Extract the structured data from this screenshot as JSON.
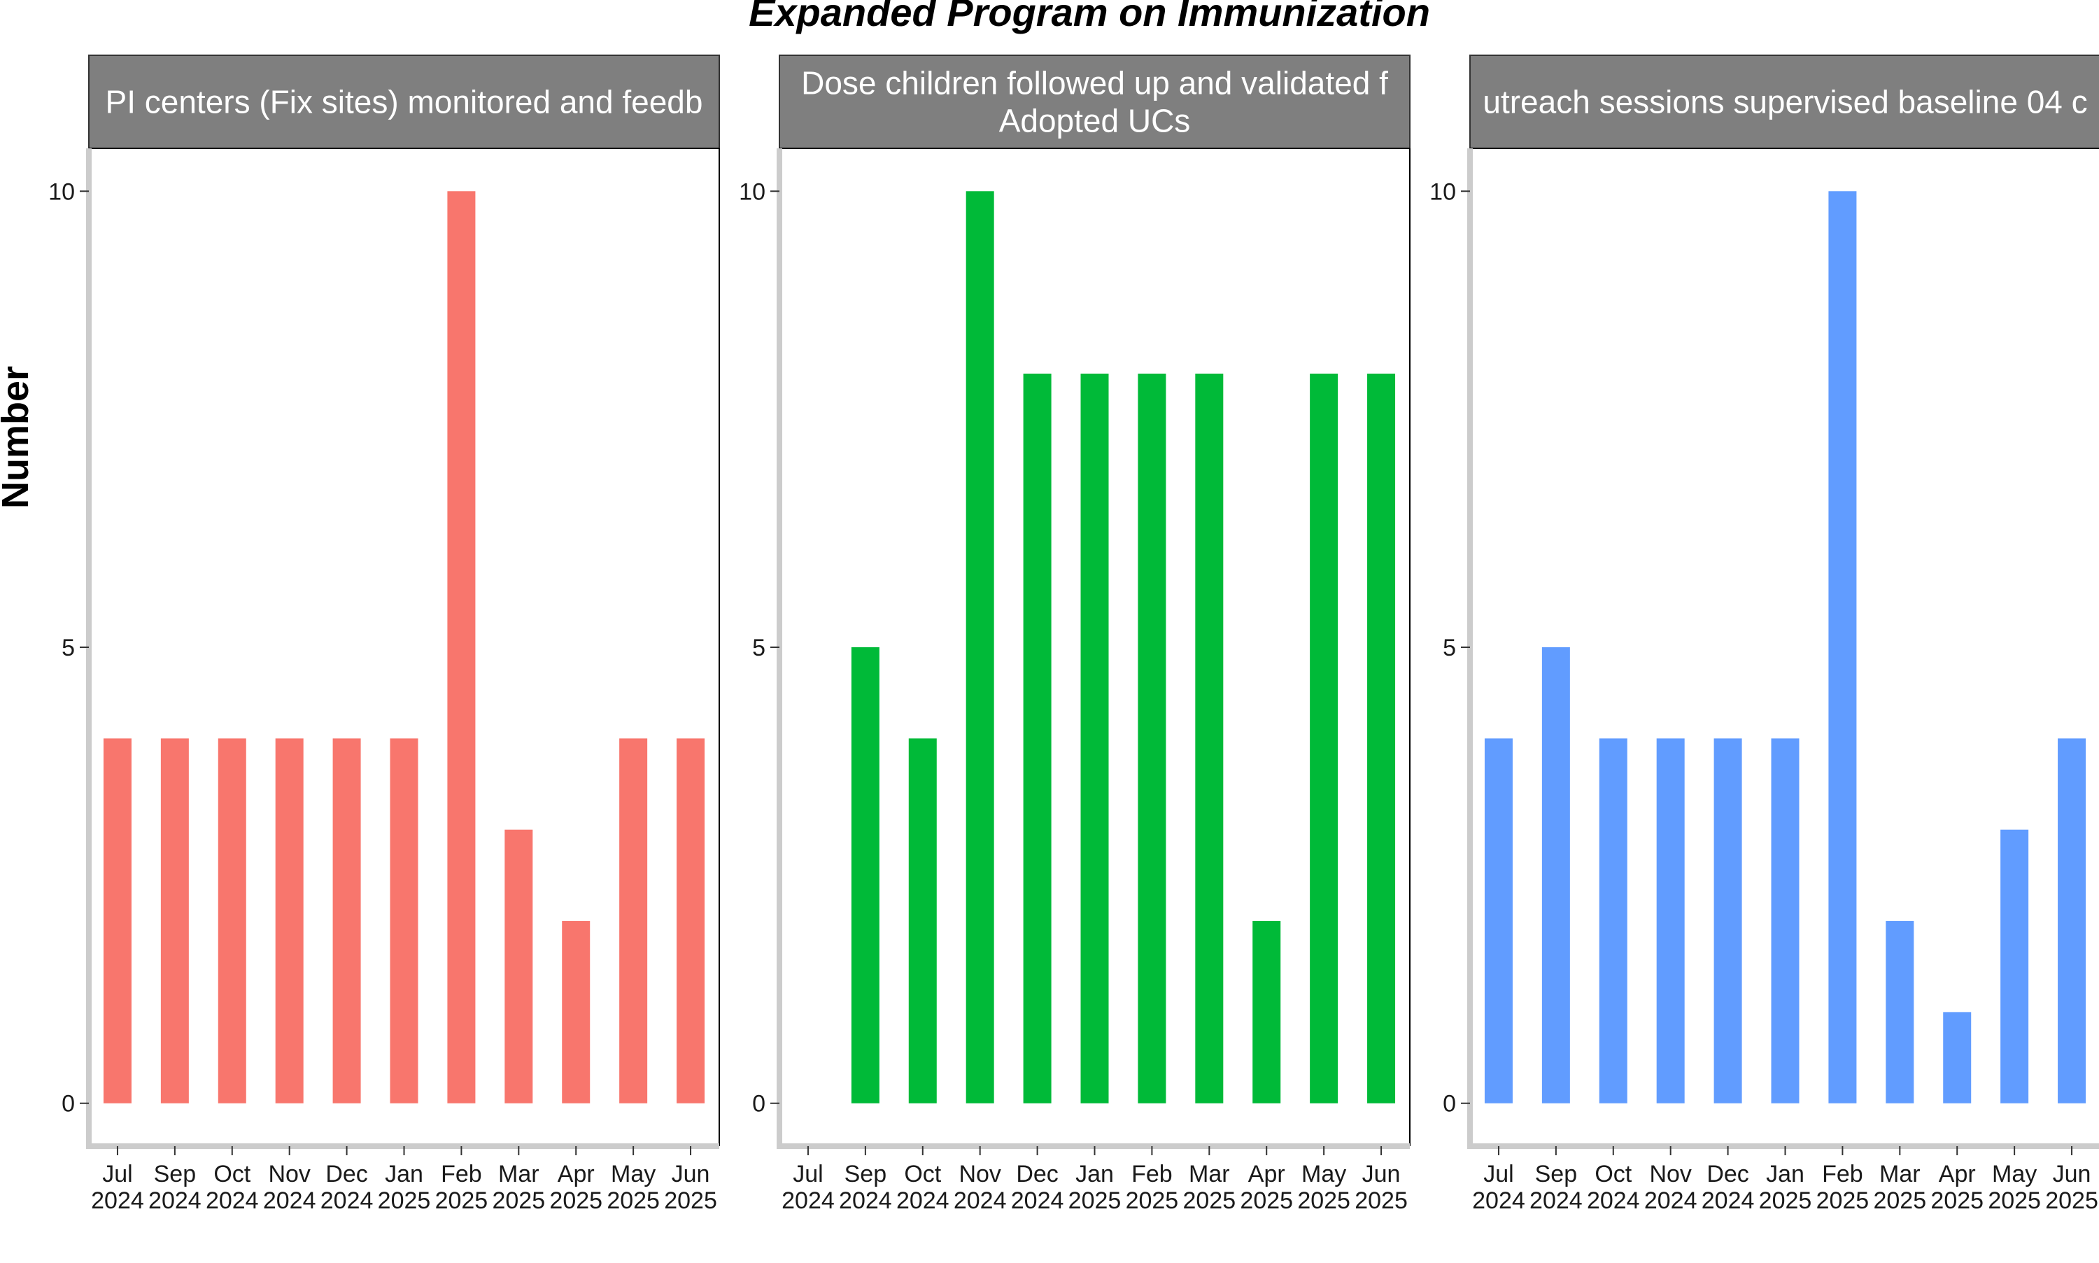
{
  "title": "Expanded Program on Immunization",
  "ylabel": "Number",
  "chart_data": [
    {
      "type": "bar",
      "panel_label_lines": [
        "PI centers (Fix sites) monitored and feedb"
      ],
      "color": "#F8766D",
      "categories": [
        {
          "month": "Jul",
          "year": "2024"
        },
        {
          "month": "Sep",
          "year": "2024"
        },
        {
          "month": "Oct",
          "year": "2024"
        },
        {
          "month": "Nov",
          "year": "2024"
        },
        {
          "month": "Dec",
          "year": "2024"
        },
        {
          "month": "Jan",
          "year": "2025"
        },
        {
          "month": "Feb",
          "year": "2025"
        },
        {
          "month": "Mar",
          "year": "2025"
        },
        {
          "month": "Apr",
          "year": "2025"
        },
        {
          "month": "May",
          "year": "2025"
        },
        {
          "month": "Jun",
          "year": "2025"
        }
      ],
      "values": [
        4,
        4,
        4,
        4,
        4,
        4,
        10,
        3,
        2,
        4,
        4
      ],
      "yticks": [
        0,
        5,
        10
      ],
      "ylim": [
        -0.47,
        10.47
      ]
    },
    {
      "type": "bar",
      "panel_label_lines": [
        "Dose children followed up and validated f",
        "Adopted UCs"
      ],
      "color": "#00BA38",
      "categories": [
        {
          "month": "Jul",
          "year": "2024"
        },
        {
          "month": "Sep",
          "year": "2024"
        },
        {
          "month": "Oct",
          "year": "2024"
        },
        {
          "month": "Nov",
          "year": "2024"
        },
        {
          "month": "Dec",
          "year": "2024"
        },
        {
          "month": "Jan",
          "year": "2025"
        },
        {
          "month": "Feb",
          "year": "2025"
        },
        {
          "month": "Mar",
          "year": "2025"
        },
        {
          "month": "Apr",
          "year": "2025"
        },
        {
          "month": "May",
          "year": "2025"
        },
        {
          "month": "Jun",
          "year": "2025"
        }
      ],
      "values": [
        0,
        5,
        4,
        10,
        8,
        8,
        8,
        8,
        2,
        8,
        8
      ],
      "yticks": [
        0,
        5,
        10
      ],
      "ylim": [
        -0.47,
        10.47
      ]
    },
    {
      "type": "bar",
      "panel_label_lines": [
        "utreach sessions supervised baseline 04 c"
      ],
      "color": "#619CFF",
      "categories": [
        {
          "month": "Jul",
          "year": "2024"
        },
        {
          "month": "Sep",
          "year": "2024"
        },
        {
          "month": "Oct",
          "year": "2024"
        },
        {
          "month": "Nov",
          "year": "2024"
        },
        {
          "month": "Dec",
          "year": "2024"
        },
        {
          "month": "Jan",
          "year": "2025"
        },
        {
          "month": "Feb",
          "year": "2025"
        },
        {
          "month": "Mar",
          "year": "2025"
        },
        {
          "month": "Apr",
          "year": "2025"
        },
        {
          "month": "May",
          "year": "2025"
        },
        {
          "month": "Jun",
          "year": "2025"
        }
      ],
      "values": [
        4,
        5,
        4,
        4,
        4,
        4,
        10,
        2,
        1,
        3,
        4
      ],
      "yticks": [
        0,
        5,
        10
      ],
      "ylim": [
        -0.47,
        10.47
      ]
    }
  ]
}
